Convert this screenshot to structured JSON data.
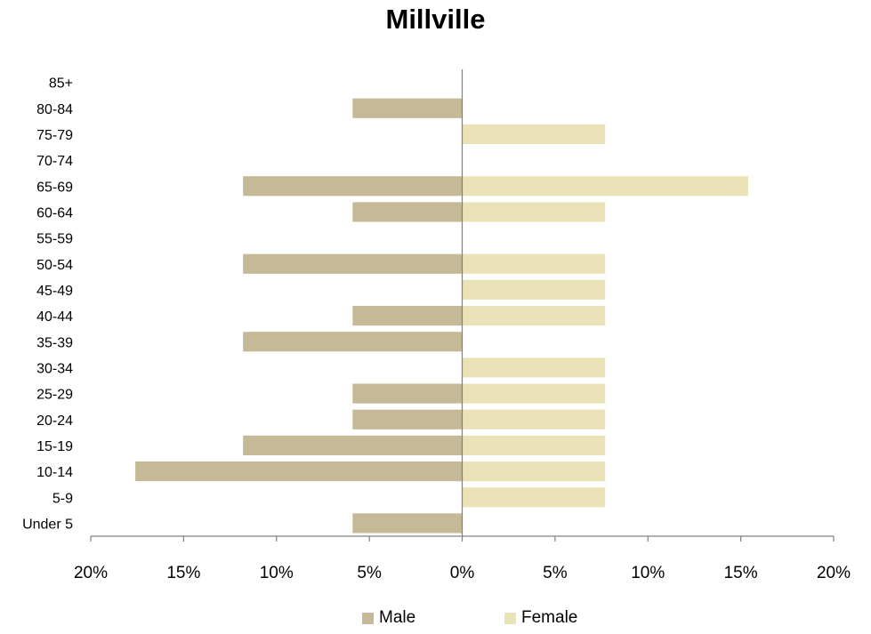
{
  "colors": {
    "male": "#c6b997",
    "female": "#ebe3b8",
    "axis": "#808080"
  },
  "chart_data": {
    "type": "bar",
    "orientation": "horizontal",
    "title": "Millville",
    "categories": [
      "85+",
      "80-84",
      "75-79",
      "70-74",
      "65-69",
      "60-64",
      "55-59",
      "50-54",
      "45-49",
      "40-44",
      "35-39",
      "30-34",
      "25-29",
      "20-24",
      "15-19",
      "10-14",
      "5-9",
      "Under 5"
    ],
    "series": [
      {
        "name": "Male",
        "values": [
          0,
          5.9,
          0,
          0,
          11.8,
          5.9,
          0,
          11.8,
          0,
          5.9,
          11.8,
          0,
          5.9,
          5.9,
          11.8,
          17.6,
          0,
          5.9
        ]
      },
      {
        "name": "Female",
        "values": [
          0,
          0,
          7.7,
          0,
          15.4,
          7.7,
          0,
          7.7,
          7.7,
          7.7,
          0,
          7.7,
          7.7,
          7.7,
          7.7,
          7.7,
          7.7,
          0
        ]
      }
    ],
    "x_ticks": [
      "20%",
      "15%",
      "10%",
      "5%",
      "0%",
      "5%",
      "10%",
      "15%",
      "20%"
    ],
    "xlim": [
      -20,
      20
    ],
    "xlabel": "",
    "ylabel": "",
    "grid": false,
    "legend_position": "bottom"
  }
}
